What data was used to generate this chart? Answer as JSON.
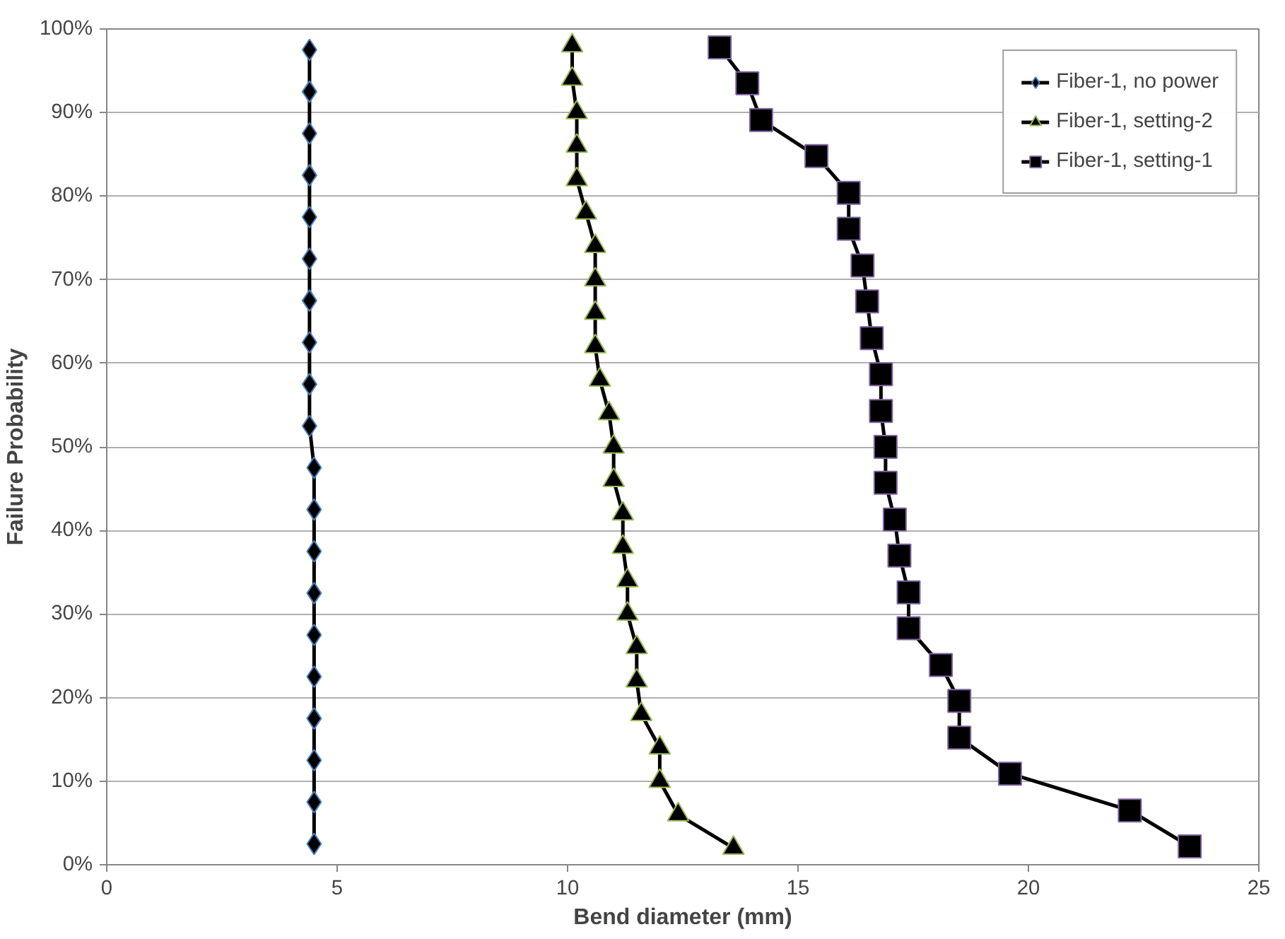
{
  "chart_data": {
    "type": "line",
    "xlabel": "Bend diameter (mm)",
    "ylabel": "Failure Probability",
    "xlim": [
      0,
      25
    ],
    "xticks": [
      0,
      5,
      10,
      15,
      20,
      25
    ],
    "ylim": [
      0,
      100
    ],
    "yticks": [
      {
        "value": 0,
        "label": "0%"
      },
      {
        "value": 10,
        "label": "10%"
      },
      {
        "value": 20,
        "label": "20%"
      },
      {
        "value": 30,
        "label": "30%"
      },
      {
        "value": 40,
        "label": "40%"
      },
      {
        "value": 50,
        "label": "50%"
      },
      {
        "value": 60,
        "label": "60%"
      },
      {
        "value": 70,
        "label": "70%"
      },
      {
        "value": 80,
        "label": "80%"
      },
      {
        "value": 90,
        "label": "90%"
      },
      {
        "value": 100,
        "label": "100%"
      }
    ],
    "grid": "y",
    "legend": "top right",
    "line_style": "solid",
    "series": [
      {
        "name": "Fiber-1, no power",
        "color": "#000000",
        "marker": "diamond",
        "x": [
          4.5,
          4.5,
          4.5,
          4.5,
          4.5,
          4.5,
          4.5,
          4.5,
          4.5,
          4.5,
          4.4,
          4.4,
          4.4,
          4.4,
          4.4,
          4.4,
          4.4,
          4.4,
          4.4,
          4.4
        ],
        "values": [
          2.5,
          7.5,
          12.5,
          17.5,
          22.5,
          27.5,
          32.5,
          37.5,
          42.5,
          47.5,
          52.5,
          57.5,
          62.5,
          67.5,
          72.5,
          77.5,
          82.5,
          87.5,
          92.5,
          97.5
        ]
      },
      {
        "name": "Fiber-1, setting-2",
        "color": "#000000",
        "marker": "triangle",
        "x": [
          13.6,
          12.4,
          12.0,
          12.0,
          11.6,
          11.5,
          11.5,
          11.3,
          11.3,
          11.2,
          11.2,
          11.0,
          11.0,
          10.9,
          10.7,
          10.6,
          10.6,
          10.6,
          10.6,
          10.4,
          10.2,
          10.2,
          10.2,
          10.1,
          10.1
        ],
        "values": [
          2,
          6,
          10,
          14,
          18,
          22,
          26,
          30,
          34,
          38,
          42,
          46,
          50,
          54,
          58,
          62,
          66,
          70,
          74,
          78,
          82,
          86,
          90,
          94,
          98
        ]
      },
      {
        "name": "Fiber-1, setting-1",
        "color": "#000000",
        "marker": "square",
        "x": [
          23.5,
          22.2,
          19.6,
          18.5,
          18.5,
          18.1,
          17.4,
          17.4,
          17.2,
          17.1,
          16.9,
          16.9,
          16.8,
          16.8,
          16.6,
          16.5,
          16.4,
          16.1,
          16.1,
          15.4,
          14.2,
          13.9,
          13.3
        ],
        "values": [
          2.2,
          6.5,
          10.9,
          15.2,
          19.6,
          23.9,
          28.3,
          32.6,
          37.0,
          41.3,
          45.7,
          50.0,
          54.3,
          58.7,
          63.0,
          67.4,
          71.7,
          76.1,
          80.4,
          84.8,
          89.1,
          93.5,
          97.8
        ]
      }
    ]
  }
}
